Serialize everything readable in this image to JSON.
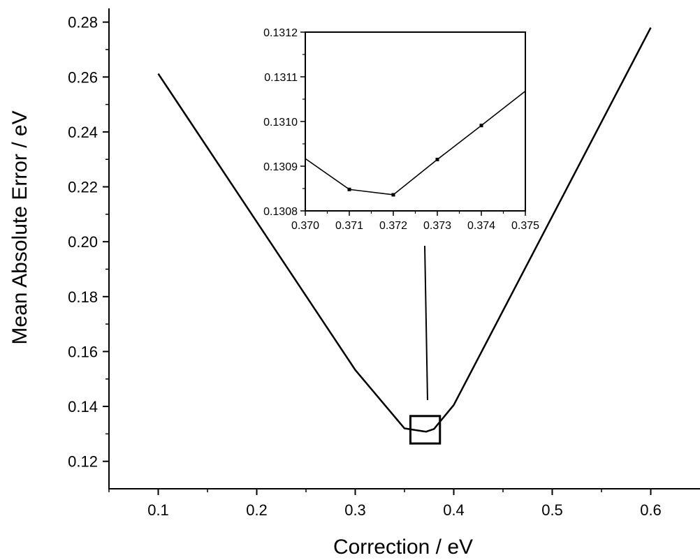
{
  "chart_data": [
    {
      "type": "line",
      "title": "",
      "xlabel": "Correction / eV",
      "ylabel": "Mean Absolute Error / eV",
      "xlim": [
        0.05,
        0.65
      ],
      "ylim": [
        0.11,
        0.285
      ],
      "xticks": [
        0.1,
        0.2,
        0.3,
        0.4,
        0.5,
        0.6
      ],
      "xtick_labels": [
        "0.1",
        "0.2",
        "0.3",
        "0.4",
        "0.5",
        "0.6"
      ],
      "yticks": [
        0.12,
        0.14,
        0.16,
        0.18,
        0.2,
        0.22,
        0.24,
        0.26,
        0.28
      ],
      "ytick_labels": [
        "0.12",
        "0.14",
        "0.16",
        "0.18",
        "0.20",
        "0.22",
        "0.24",
        "0.26",
        "0.28"
      ],
      "grid": false,
      "series": [
        {
          "x": [
            0.1,
            0.3,
            0.35,
            0.37,
            0.372,
            0.38,
            0.385,
            0.4,
            0.6
          ],
          "values": [
            0.2612,
            0.1533,
            0.132,
            0.1309,
            0.1308,
            0.1318,
            0.134,
            0.1405,
            0.278
          ]
        }
      ],
      "annotations": [
        {
          "type": "zoom-box",
          "x_range": [
            0.356,
            0.386
          ],
          "y_range": [
            0.1265,
            0.1365
          ]
        }
      ]
    },
    {
      "type": "line",
      "title": "",
      "xlabel": "",
      "ylabel": "",
      "xlim": [
        0.37,
        0.375
      ],
      "ylim": [
        0.1308,
        0.1312
      ],
      "xticks": [
        0.37,
        0.371,
        0.372,
        0.373,
        0.374,
        0.375
      ],
      "xtick_labels": [
        "0.370",
        "0.371",
        "0.372",
        "0.373",
        "0.374",
        "0.375"
      ],
      "yticks": [
        0.1308,
        0.1309,
        0.131,
        0.1311,
        0.1312
      ],
      "ytick_labels": [
        "0.1308",
        "0.1309",
        "0.1310",
        "0.1311",
        "0.1312"
      ],
      "grid": false,
      "series": [
        {
          "x": [
            0.37,
            0.371,
            0.372,
            0.373,
            0.374,
            0.375
          ],
          "values": [
            0.130917,
            0.130848,
            0.130836,
            0.130915,
            0.130991,
            0.131068
          ],
          "markers": true
        }
      ]
    }
  ]
}
